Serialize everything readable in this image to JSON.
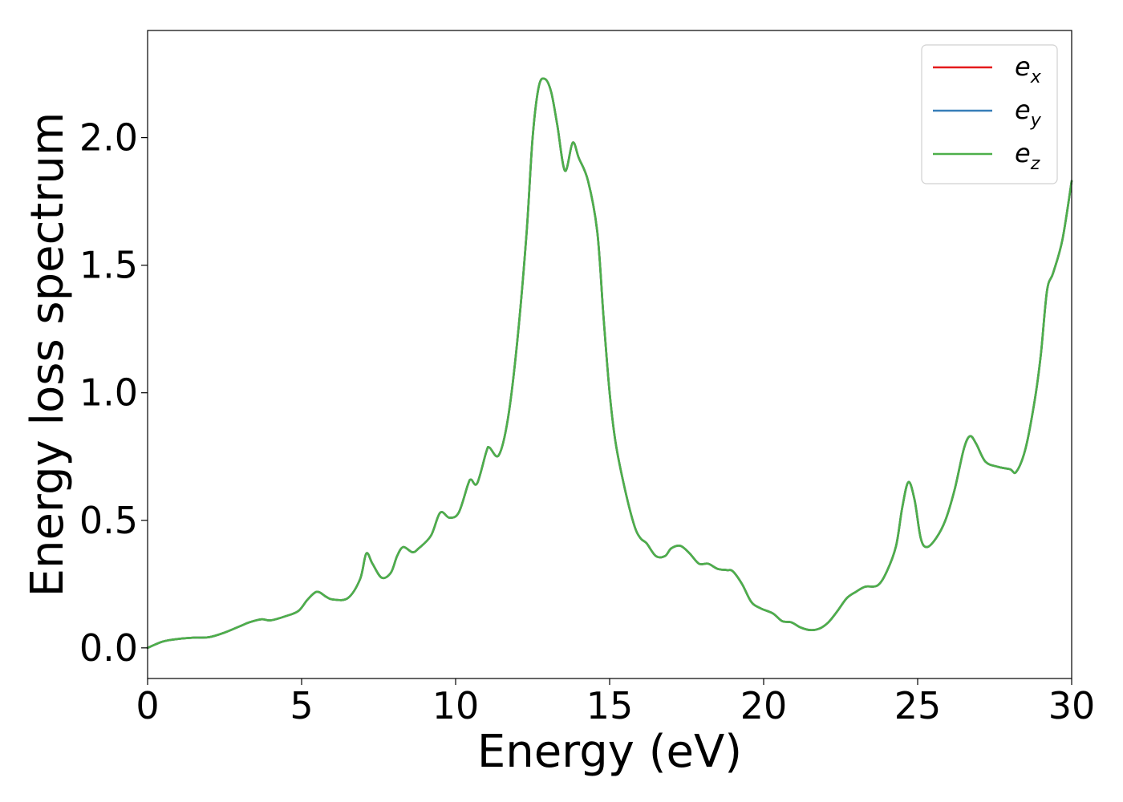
{
  "chart_data": {
    "type": "line",
    "title": "",
    "xlabel": "Energy (eV)",
    "ylabel": "Energy loss spectrum",
    "xlim": [
      0,
      30
    ],
    "ylim": [
      -0.12,
      2.42
    ],
    "xticks": [
      0,
      5,
      10,
      15,
      20,
      25,
      30
    ],
    "xtick_labels": [
      "0",
      "5",
      "10",
      "15",
      "20",
      "25",
      "30"
    ],
    "yticks": [
      0.0,
      0.5,
      1.0,
      1.5,
      2.0
    ],
    "ytick_labels": [
      "0.0",
      "0.5",
      "1.0",
      "1.5",
      "2.0"
    ],
    "grid": false,
    "legend_position": "top-right",
    "x": [
      0,
      0.5,
      1.0,
      1.5,
      2.0,
      2.5,
      3.0,
      3.3,
      3.7,
      4.0,
      4.5,
      4.9,
      5.2,
      5.5,
      5.8,
      6.0,
      6.5,
      6.9,
      7.1,
      7.3,
      7.6,
      7.9,
      8.1,
      8.3,
      8.6,
      8.8,
      9.2,
      9.5,
      9.8,
      10.1,
      10.4,
      10.5,
      10.7,
      11.0,
      11.1,
      11.4,
      11.7,
      12.0,
      12.3,
      12.5,
      12.7,
      12.9,
      13.1,
      13.3,
      13.55,
      13.8,
      14.0,
      14.3,
      14.6,
      14.8,
      15.0,
      15.2,
      15.5,
      15.8,
      16.0,
      16.2,
      16.5,
      16.8,
      17.0,
      17.3,
      17.6,
      17.9,
      18.2,
      18.5,
      18.8,
      19.0,
      19.3,
      19.6,
      19.9,
      20.3,
      20.6,
      20.9,
      21.2,
      21.5,
      21.8,
      22.1,
      22.4,
      22.7,
      23.0,
      23.3,
      23.7,
      24.0,
      24.3,
      24.5,
      24.7,
      24.9,
      25.1,
      25.3,
      25.6,
      25.9,
      26.2,
      26.5,
      26.7,
      26.9,
      27.2,
      27.6,
      28.0,
      28.2,
      28.5,
      28.8,
      29.0,
      29.2,
      29.4,
      29.7,
      30.0
    ],
    "series": [
      {
        "name": "e_x",
        "color": "#e41a1c",
        "values": [
          0.0,
          0.025,
          0.035,
          0.04,
          0.042,
          0.06,
          0.085,
          0.1,
          0.112,
          0.108,
          0.125,
          0.145,
          0.19,
          0.22,
          0.2,
          0.19,
          0.195,
          0.27,
          0.37,
          0.33,
          0.275,
          0.295,
          0.36,
          0.395,
          0.375,
          0.39,
          0.44,
          0.53,
          0.51,
          0.53,
          0.64,
          0.66,
          0.645,
          0.77,
          0.785,
          0.755,
          0.9,
          1.2,
          1.62,
          2.0,
          2.2,
          2.23,
          2.18,
          2.05,
          1.87,
          1.98,
          1.92,
          1.83,
          1.63,
          1.3,
          1.0,
          0.8,
          0.62,
          0.48,
          0.43,
          0.41,
          0.36,
          0.36,
          0.39,
          0.4,
          0.37,
          0.33,
          0.33,
          0.31,
          0.305,
          0.3,
          0.25,
          0.18,
          0.155,
          0.135,
          0.105,
          0.1,
          0.08,
          0.07,
          0.075,
          0.1,
          0.145,
          0.195,
          0.22,
          0.24,
          0.245,
          0.3,
          0.4,
          0.55,
          0.65,
          0.58,
          0.43,
          0.395,
          0.43,
          0.5,
          0.62,
          0.78,
          0.83,
          0.8,
          0.73,
          0.71,
          0.7,
          0.69,
          0.78,
          0.97,
          1.15,
          1.4,
          1.47,
          1.6,
          1.83
        ]
      },
      {
        "name": "e_y",
        "color": "#377eb8",
        "values": [
          0.0,
          0.025,
          0.035,
          0.04,
          0.042,
          0.06,
          0.085,
          0.1,
          0.112,
          0.108,
          0.125,
          0.145,
          0.19,
          0.22,
          0.2,
          0.19,
          0.195,
          0.27,
          0.37,
          0.33,
          0.275,
          0.295,
          0.36,
          0.395,
          0.375,
          0.39,
          0.44,
          0.53,
          0.51,
          0.53,
          0.64,
          0.66,
          0.645,
          0.77,
          0.785,
          0.755,
          0.9,
          1.2,
          1.62,
          2.0,
          2.2,
          2.23,
          2.18,
          2.05,
          1.87,
          1.98,
          1.92,
          1.83,
          1.63,
          1.3,
          1.0,
          0.8,
          0.62,
          0.48,
          0.43,
          0.41,
          0.36,
          0.36,
          0.39,
          0.4,
          0.37,
          0.33,
          0.33,
          0.31,
          0.305,
          0.3,
          0.25,
          0.18,
          0.155,
          0.135,
          0.105,
          0.1,
          0.08,
          0.07,
          0.075,
          0.1,
          0.145,
          0.195,
          0.22,
          0.24,
          0.245,
          0.3,
          0.4,
          0.55,
          0.65,
          0.58,
          0.43,
          0.395,
          0.43,
          0.5,
          0.62,
          0.78,
          0.83,
          0.8,
          0.73,
          0.71,
          0.7,
          0.69,
          0.78,
          0.97,
          1.15,
          1.4,
          1.47,
          1.6,
          1.83
        ]
      },
      {
        "name": "e_z",
        "color": "#4daf4a",
        "values": [
          0.0,
          0.025,
          0.035,
          0.04,
          0.042,
          0.06,
          0.085,
          0.1,
          0.112,
          0.108,
          0.125,
          0.145,
          0.19,
          0.22,
          0.2,
          0.19,
          0.195,
          0.27,
          0.37,
          0.33,
          0.275,
          0.295,
          0.36,
          0.395,
          0.375,
          0.39,
          0.44,
          0.53,
          0.51,
          0.53,
          0.64,
          0.66,
          0.645,
          0.77,
          0.785,
          0.755,
          0.9,
          1.2,
          1.62,
          2.0,
          2.2,
          2.23,
          2.18,
          2.05,
          1.87,
          1.98,
          1.92,
          1.83,
          1.63,
          1.3,
          1.0,
          0.8,
          0.62,
          0.48,
          0.43,
          0.41,
          0.36,
          0.36,
          0.39,
          0.4,
          0.37,
          0.33,
          0.33,
          0.31,
          0.305,
          0.3,
          0.25,
          0.18,
          0.155,
          0.135,
          0.105,
          0.1,
          0.08,
          0.07,
          0.075,
          0.1,
          0.145,
          0.195,
          0.22,
          0.24,
          0.245,
          0.3,
          0.4,
          0.55,
          0.65,
          0.58,
          0.43,
          0.395,
          0.43,
          0.5,
          0.62,
          0.78,
          0.83,
          0.8,
          0.73,
          0.71,
          0.7,
          0.69,
          0.78,
          0.97,
          1.15,
          1.4,
          1.47,
          1.6,
          1.83
        ]
      }
    ],
    "legend": [
      {
        "base": "e",
        "sub": "x",
        "color": "#e41a1c"
      },
      {
        "base": "e",
        "sub": "y",
        "color": "#377eb8"
      },
      {
        "base": "e",
        "sub": "z",
        "color": "#4daf4a"
      }
    ]
  }
}
